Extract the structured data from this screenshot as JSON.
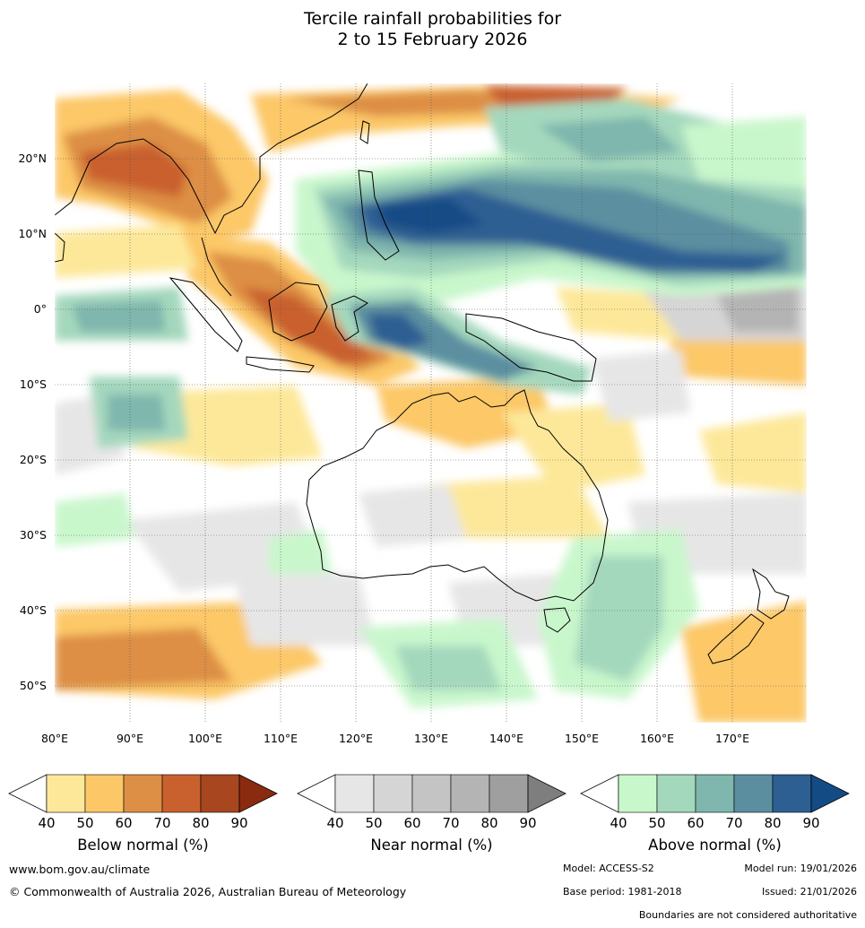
{
  "title": {
    "line1": "Tercile rainfall probabilities for",
    "line2": "2 to 15 February 2026"
  },
  "map": {
    "lon_range": [
      80,
      180
    ],
    "lat_range": [
      -55,
      30
    ],
    "lon_ticks": [
      "80°E",
      "90°E",
      "100°E",
      "110°E",
      "120°E",
      "130°E",
      "140°E",
      "150°E",
      "160°E",
      "170°E"
    ],
    "lat_ticks": [
      "20°N",
      "10°N",
      "0°",
      "10°S",
      "20°S",
      "30°S",
      "40°S",
      "50°S"
    ],
    "gridlines": true
  },
  "colorbars": [
    {
      "label": "Below normal (%)",
      "ticks": [
        "40",
        "50",
        "60",
        "70",
        "80",
        "90"
      ],
      "colors": [
        "#ffffff",
        "#fde89a",
        "#fcc867",
        "#dd8f45",
        "#c9612f",
        "#a8461f",
        "#8a2b10"
      ]
    },
    {
      "label": "Near normal (%)",
      "ticks": [
        "40",
        "50",
        "60",
        "70",
        "80",
        "90"
      ],
      "colors": [
        "#ffffff",
        "#e6e6e6",
        "#d5d5d5",
        "#c4c4c4",
        "#b4b4b4",
        "#9f9f9f",
        "#7e7e7e"
      ]
    },
    {
      "label": "Above normal (%)",
      "ticks": [
        "40",
        "50",
        "60",
        "70",
        "80",
        "90"
      ],
      "colors": [
        "#ffffff",
        "#c9f7cc",
        "#a4d8bd",
        "#7fb6ad",
        "#5b8fa0",
        "#2e5f93",
        "#134b85"
      ]
    }
  ],
  "footer": {
    "website": "www.bom.gov.au/climate",
    "copyright": "© Commonwealth of Australia 2026, Australian Bureau of Meteorology",
    "model": "Model: ACCESS-S2",
    "model_run": "Model run: 19/01/2026",
    "base_period": "Base period: 1981-2018",
    "issued": "Issued: 21/01/2026",
    "disclaimer": "Boundaries are not considered authoritative"
  }
}
